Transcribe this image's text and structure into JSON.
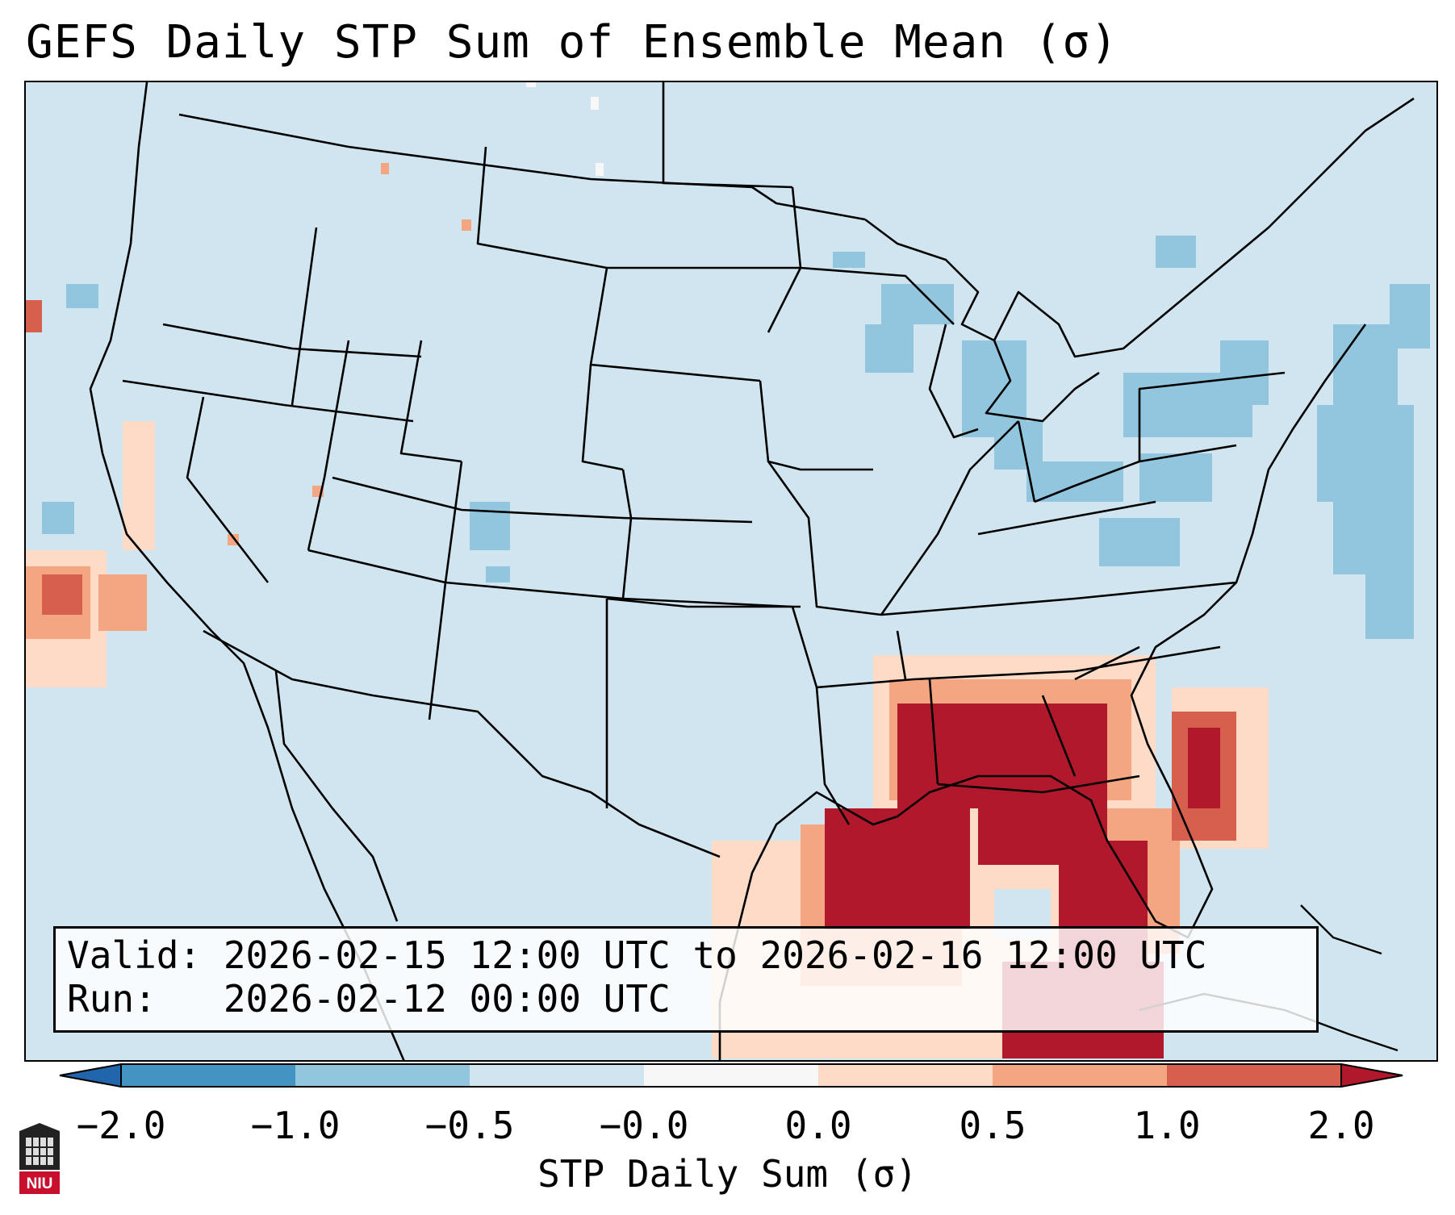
{
  "title": "GEFS Daily STP Sum of Ensemble Mean (σ)",
  "info": {
    "valid_line": "Valid: 2026-02-15 12:00 UTC to 2026-02-16 12:00 UTC",
    "run_line": "Run:   2026-02-12 00:00 UTC"
  },
  "colorbar": {
    "label": "STP Daily Sum (σ)",
    "ticks": [
      "−2.0",
      "−1.0",
      "−0.5",
      "−0.0",
      "0.0",
      "0.5",
      "1.0",
      "2.0"
    ],
    "colors": [
      "#4393c3",
      "#92c5de",
      "#d1e5f0",
      "#f7f7f7",
      "#fddbc7",
      "#f4a582",
      "#d6604d",
      "#b2182b"
    ],
    "extend": "both"
  },
  "map": {
    "region": "Continental United States",
    "background_color": "#d1e5f0",
    "highlight_region": "Gulf Coast / Southeast",
    "max_category_color": "#b2182b"
  },
  "logo_text": "NIU"
}
